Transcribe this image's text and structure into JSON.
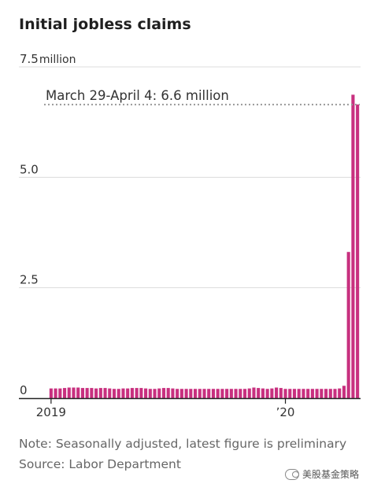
{
  "chart_data": {
    "type": "bar",
    "title": "Initial jobless claims",
    "xlabel": "",
    "ylabel": "",
    "y_unit_label": "million",
    "ylim": [
      0,
      7.5
    ],
    "yticks": [
      0,
      2.5,
      5.0,
      7.5
    ],
    "ytick_labels": [
      "0",
      "2.5",
      "5.0",
      "7.5"
    ],
    "xtick_labels": [
      {
        "label": "2019",
        "index": 0
      },
      {
        "label": "’20",
        "index": 52
      }
    ],
    "grid": true,
    "color": "#c8307f",
    "annotation": {
      "text": "March 29-April 4: 6.6 million",
      "value": 6.648
    },
    "values": [
      0.22,
      0.22,
      0.22,
      0.23,
      0.24,
      0.24,
      0.24,
      0.23,
      0.23,
      0.23,
      0.22,
      0.23,
      0.23,
      0.22,
      0.21,
      0.21,
      0.22,
      0.22,
      0.23,
      0.23,
      0.23,
      0.22,
      0.21,
      0.21,
      0.22,
      0.23,
      0.23,
      0.22,
      0.21,
      0.21,
      0.21,
      0.21,
      0.21,
      0.21,
      0.21,
      0.21,
      0.21,
      0.21,
      0.21,
      0.21,
      0.21,
      0.21,
      0.21,
      0.21,
      0.22,
      0.24,
      0.23,
      0.22,
      0.21,
      0.22,
      0.24,
      0.23,
      0.21,
      0.21,
      0.21,
      0.21,
      0.21,
      0.21,
      0.21,
      0.21,
      0.21,
      0.21,
      0.21,
      0.21,
      0.22,
      0.28,
      3.31,
      6.87,
      6.65
    ]
  },
  "footer": {
    "note": "Note: Seasonally adjusted, latest figure is preliminary",
    "source": "Source: Labor Department"
  },
  "watermark": {
    "text": "美股基金策略",
    "icon": "wechat-icon"
  }
}
